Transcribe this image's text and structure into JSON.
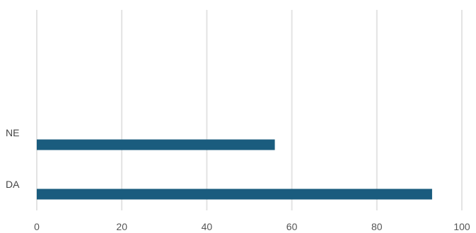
{
  "chart_data": {
    "type": "bar",
    "orientation": "horizontal",
    "title": "",
    "xlabel": "",
    "ylabel": "",
    "categories": [
      "NE",
      "DA"
    ],
    "values": [
      56,
      93
    ],
    "xlim": [
      0,
      100
    ],
    "x_ticks": [
      0,
      20,
      40,
      60,
      80,
      100
    ],
    "grid": "vertical",
    "legend": "none",
    "bar_color": "#1a5c7e",
    "grid_color": "#e3e3e3"
  }
}
